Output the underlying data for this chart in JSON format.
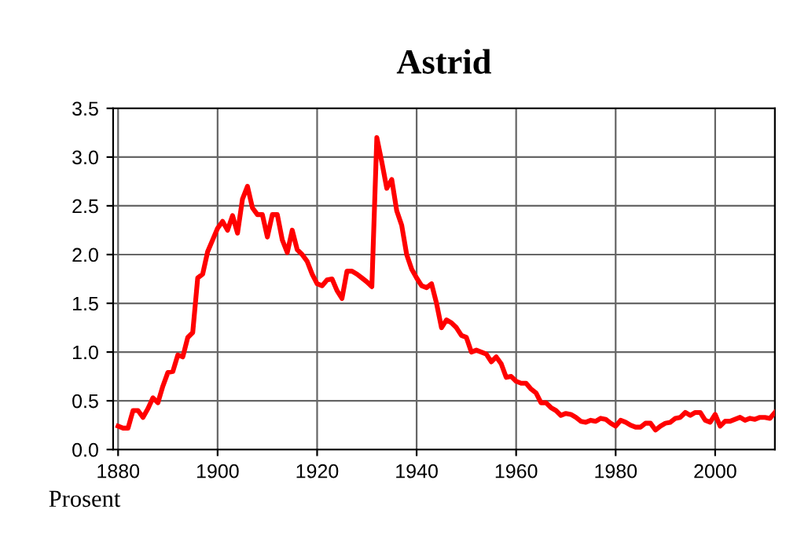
{
  "chart_data": {
    "type": "line",
    "title": "Astrid",
    "ylabel": "Prosent",
    "x": [
      1880,
      1881,
      1882,
      1883,
      1884,
      1885,
      1886,
      1887,
      1888,
      1889,
      1890,
      1891,
      1892,
      1893,
      1894,
      1895,
      1896,
      1897,
      1898,
      1899,
      1900,
      1901,
      1902,
      1903,
      1904,
      1905,
      1906,
      1907,
      1908,
      1909,
      1910,
      1911,
      1912,
      1913,
      1914,
      1915,
      1916,
      1917,
      1918,
      1919,
      1920,
      1921,
      1922,
      1923,
      1924,
      1925,
      1926,
      1927,
      1928,
      1929,
      1930,
      1931,
      1932,
      1933,
      1934,
      1935,
      1936,
      1937,
      1938,
      1939,
      1940,
      1941,
      1942,
      1943,
      1944,
      1945,
      1946,
      1947,
      1948,
      1949,
      1950,
      1951,
      1952,
      1953,
      1954,
      1955,
      1956,
      1957,
      1958,
      1959,
      1960,
      1961,
      1962,
      1963,
      1964,
      1965,
      1966,
      1967,
      1968,
      1969,
      1970,
      1971,
      1972,
      1973,
      1974,
      1975,
      1976,
      1977,
      1978,
      1979,
      1980,
      1981,
      1982,
      1983,
      1984,
      1985,
      1986,
      1987,
      1988,
      1989,
      1990,
      1991,
      1992,
      1993,
      1994,
      1995,
      1996,
      1997,
      1998,
      1999,
      2000,
      2001,
      2002,
      2003,
      2004,
      2005,
      2006,
      2007,
      2008,
      2009,
      2010,
      2011,
      2012
    ],
    "series": [
      {
        "color": "#ff0000",
        "values": [
          0.24,
          0.22,
          0.22,
          0.4,
          0.4,
          0.33,
          0.42,
          0.53,
          0.48,
          0.65,
          0.79,
          0.8,
          0.97,
          0.95,
          1.15,
          1.2,
          1.76,
          1.8,
          2.03,
          2.15,
          2.27,
          2.34,
          2.25,
          2.4,
          2.22,
          2.57,
          2.7,
          2.48,
          2.41,
          2.41,
          2.18,
          2.41,
          2.41,
          2.15,
          2.02,
          2.25,
          2.05,
          2.0,
          1.93,
          1.8,
          1.7,
          1.68,
          1.74,
          1.75,
          1.63,
          1.55,
          1.83,
          1.83,
          1.8,
          1.76,
          1.72,
          1.67,
          3.2,
          2.95,
          2.68,
          2.77,
          2.45,
          2.3,
          2.0,
          1.85,
          1.76,
          1.68,
          1.66,
          1.7,
          1.5,
          1.25,
          1.33,
          1.3,
          1.25,
          1.17,
          1.15,
          1.0,
          1.02,
          1.0,
          0.98,
          0.9,
          0.95,
          0.88,
          0.74,
          0.75,
          0.7,
          0.68,
          0.68,
          0.62,
          0.58,
          0.48,
          0.48,
          0.43,
          0.4,
          0.35,
          0.37,
          0.36,
          0.33,
          0.29,
          0.28,
          0.3,
          0.29,
          0.32,
          0.31,
          0.27,
          0.24,
          0.3,
          0.28,
          0.25,
          0.23,
          0.23,
          0.27,
          0.27,
          0.2,
          0.24,
          0.27,
          0.28,
          0.32,
          0.33,
          0.38,
          0.35,
          0.38,
          0.38,
          0.3,
          0.28,
          0.36,
          0.24,
          0.29,
          0.29,
          0.31,
          0.33,
          0.3,
          0.32,
          0.31,
          0.33,
          0.33,
          0.32,
          0.38
        ]
      }
    ],
    "xlim": [
      1879,
      2012
    ],
    "xticks": [
      1880,
      1900,
      1920,
      1940,
      1960,
      1980,
      2000
    ],
    "ylim": [
      0,
      3.5
    ],
    "yticks": [
      {
        "value": 0,
        "label": "0.0"
      },
      {
        "value": 0.5,
        "label": "0.5"
      },
      {
        "value": 1,
        "label": "1.0"
      },
      {
        "value": 1.5,
        "label": "1.5"
      },
      {
        "value": 2,
        "label": "2.0"
      },
      {
        "value": 2.5,
        "label": "2.5"
      },
      {
        "value": 3,
        "label": "3.0"
      },
      {
        "value": 3.5,
        "label": "3.5"
      }
    ],
    "grid": true,
    "legend": false
  }
}
